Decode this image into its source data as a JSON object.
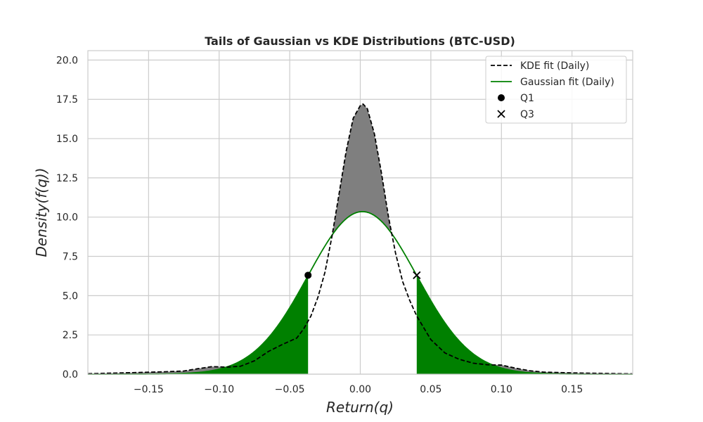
{
  "chart_data": {
    "type": "line",
    "title": "Tails of Gaussian vs KDE Distributions (BTC-USD)",
    "xlabel": "Return(q)",
    "ylabel": "Density(f(q))",
    "xlim": [
      -0.193,
      0.193
    ],
    "ylim": [
      0,
      20.6
    ],
    "xticks": [
      -0.15,
      -0.1,
      -0.05,
      0.0,
      0.05,
      0.1,
      0.15
    ],
    "xtick_labels": [
      "−0.15",
      "−0.10",
      "−0.05",
      "0.00",
      "0.05",
      "0.10",
      "0.15"
    ],
    "yticks": [
      0,
      2.5,
      5,
      7.5,
      10,
      12.5,
      15,
      17.5,
      20
    ],
    "ytick_labels": [
      "0.0",
      "2.5",
      "5.0",
      "7.5",
      "10.0",
      "12.5",
      "15.0",
      "17.5",
      "20.0"
    ],
    "grid": true,
    "legend_position": "top-right",
    "series": [
      {
        "name": "KDE fit (Daily)",
        "style": "dashed",
        "color": "#000000",
        "x": [
          -0.193,
          -0.16,
          -0.14,
          -0.125,
          -0.115,
          -0.105,
          -0.095,
          -0.085,
          -0.075,
          -0.065,
          -0.055,
          -0.045,
          -0.04,
          -0.035,
          -0.03,
          -0.025,
          -0.02,
          -0.015,
          -0.01,
          -0.005,
          0.0,
          0.002,
          0.005,
          0.01,
          0.015,
          0.02,
          0.025,
          0.03,
          0.035,
          0.04,
          0.05,
          0.06,
          0.07,
          0.08,
          0.09,
          0.1,
          0.11,
          0.12,
          0.13,
          0.15,
          0.193
        ],
        "y": [
          0.03,
          0.1,
          0.15,
          0.2,
          0.35,
          0.48,
          0.45,
          0.5,
          0.85,
          1.45,
          1.9,
          2.3,
          2.9,
          3.7,
          4.9,
          6.5,
          8.8,
          11.5,
          14.2,
          16.3,
          17.1,
          17.2,
          16.9,
          15.3,
          12.8,
          10.0,
          7.7,
          5.9,
          4.7,
          3.7,
          2.2,
          1.35,
          0.95,
          0.7,
          0.6,
          0.58,
          0.38,
          0.22,
          0.13,
          0.08,
          0.02
        ]
      },
      {
        "name": "Gaussian fit (Daily)",
        "style": "solid",
        "color": "#008000",
        "mean": 0.0015,
        "std": 0.0385,
        "peak": 10.35
      }
    ],
    "markers": [
      {
        "name": "Q1",
        "symbol": "circle",
        "x": -0.037,
        "y": 6.3,
        "color": "#000000"
      },
      {
        "name": "Q3",
        "symbol": "x",
        "x": 0.04,
        "y": 6.3,
        "color": "#000000"
      }
    ],
    "shading": {
      "tail_fill_color": "#008000",
      "kde_excess_fill_color": "#7f7f7f",
      "left_tail_max": -0.037,
      "right_tail_min": 0.04
    }
  }
}
